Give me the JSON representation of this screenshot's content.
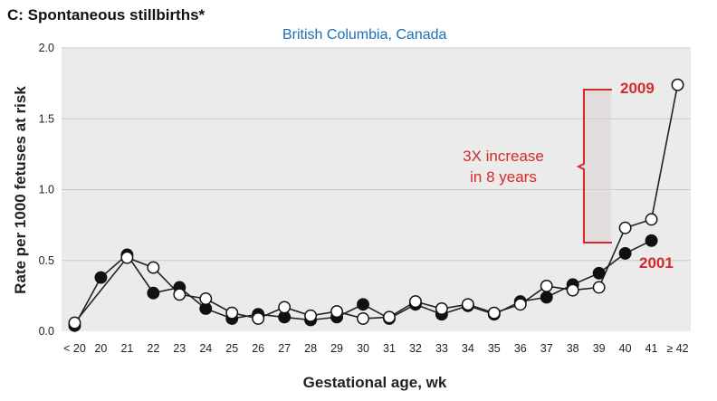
{
  "chart_data": {
    "type": "line",
    "title": "C: Spontaneous stillbirths*",
    "subtitle": "British Columbia, Canada",
    "xlabel": "Gestational age, wk",
    "ylabel": "Rate per 1000 fetuses at risk",
    "categories": [
      "< 20",
      "20",
      "21",
      "22",
      "23",
      "24",
      "25",
      "26",
      "27",
      "28",
      "29",
      "30",
      "31",
      "32",
      "33",
      "34",
      "35",
      "36",
      "37",
      "38",
      "39",
      "40",
      "41",
      "≥ 42"
    ],
    "ylim": [
      0,
      2.0
    ],
    "yticks": [
      "0.0",
      "0.5",
      "1.0",
      "1.5",
      "2.0"
    ],
    "grid": true,
    "series": [
      {
        "name": "2001",
        "marker": "filled",
        "values": [
          0.04,
          0.38,
          0.54,
          0.27,
          0.31,
          0.16,
          0.09,
          0.12,
          0.1,
          0.08,
          0.1,
          0.19,
          0.09,
          0.19,
          0.12,
          0.18,
          0.12,
          0.21,
          0.24,
          0.33,
          0.41,
          0.55,
          0.64,
          null
        ]
      },
      {
        "name": "2009",
        "marker": "open",
        "values": [
          0.06,
          null,
          0.52,
          0.45,
          0.26,
          0.23,
          0.13,
          0.09,
          0.17,
          0.11,
          0.14,
          0.09,
          0.1,
          0.21,
          0.16,
          0.19,
          0.13,
          0.19,
          0.32,
          0.29,
          0.31,
          0.73,
          0.79,
          1.74
        ]
      }
    ],
    "annotations": {
      "increase_line1": "3X increase",
      "increase_line2": "in 8 years",
      "label_2009": "2009",
      "label_2001": "2001"
    },
    "colors": {
      "plot_bg": "#ebebeb",
      "grid": "#c9c9c9",
      "line": "#222222",
      "annotation": "#d42a2a",
      "subtitle": "#1a6fb5"
    }
  }
}
